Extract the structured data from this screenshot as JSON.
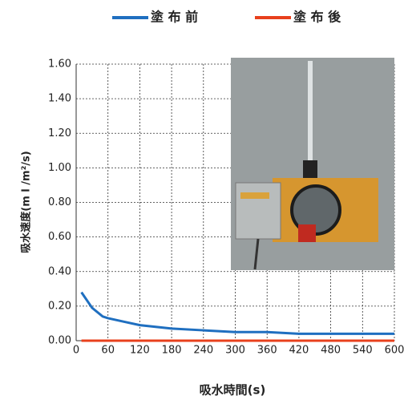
{
  "chart_data": {
    "type": "line",
    "x_label": "吸水時間(s)",
    "y_label": "吸水速度(m l /m²/s)",
    "xlim": [
      0,
      600
    ],
    "xticks": [
      0,
      60,
      120,
      180,
      240,
      300,
      360,
      420,
      480,
      540,
      600
    ],
    "ylim": [
      0,
      1.6
    ],
    "yticks": [
      {
        "value": 0,
        "label": "0.00"
      },
      {
        "value": 0.2,
        "label": "0.20"
      },
      {
        "value": 0.4,
        "label": "0.40"
      },
      {
        "value": 0.6,
        "label": "0.60"
      },
      {
        "value": 0.8,
        "label": "0.80"
      },
      {
        "value": 1.0,
        "label": "1.00"
      },
      {
        "value": 1.2,
        "label": "1.20"
      },
      {
        "value": 1.4,
        "label": "1.40"
      },
      {
        "value": 1.6,
        "label": "1.60"
      }
    ],
    "grid": true,
    "legend": "top",
    "series": [
      {
        "name": "塗 布 前",
        "color": "#1f6fc0",
        "x": [
          10,
          30,
          50,
          60,
          90,
          120,
          180,
          240,
          300,
          360,
          420,
          480,
          540,
          600
        ],
        "values": [
          0.28,
          0.19,
          0.14,
          0.13,
          0.11,
          0.09,
          0.07,
          0.06,
          0.05,
          0.05,
          0.04,
          0.04,
          0.04,
          0.04
        ]
      },
      {
        "name": "塗 布 後",
        "color": "#e8401c",
        "x": [
          10,
          60,
          120,
          180,
          240,
          300,
          360,
          420,
          480,
          540,
          600
        ],
        "values": [
          0,
          0,
          0,
          0,
          0,
          0,
          0,
          0,
          0,
          0,
          0
        ]
      }
    ]
  }
}
